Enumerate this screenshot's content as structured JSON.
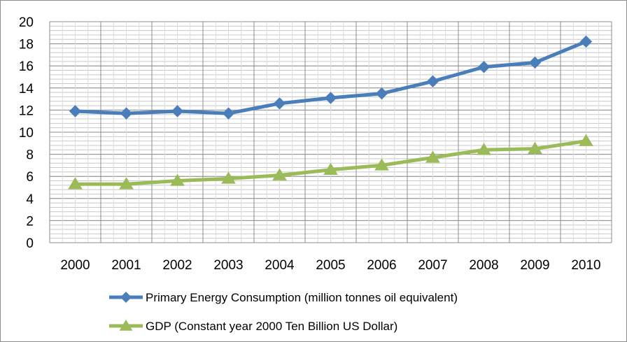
{
  "chart_data": {
    "type": "line",
    "title": "",
    "xlabel": "",
    "ylabel": "",
    "categories": [
      "2000",
      "2001",
      "2002",
      "2003",
      "2004",
      "2005",
      "2006",
      "2007",
      "2008",
      "2009",
      "2010"
    ],
    "ylim": [
      0,
      20
    ],
    "yticks": [
      "0",
      "2",
      "4",
      "6",
      "8",
      "10",
      "12",
      "14",
      "16",
      "18",
      "20"
    ],
    "grid": "on",
    "legend_position": "bottom",
    "series": [
      {
        "name": "Primary Energy Consumption (million tonnes oil equivalent)",
        "values": [
          11.9,
          11.7,
          11.9,
          11.7,
          12.6,
          13.1,
          13.5,
          14.6,
          15.9,
          16.3,
          18.2
        ],
        "color": "#4a7ebb",
        "marker": "diamond"
      },
      {
        "name": "GDP (Constant year 2000 Ten Billion US Dollar)",
        "values": [
          5.3,
          5.3,
          5.6,
          5.8,
          6.1,
          6.6,
          7.0,
          7.7,
          8.4,
          8.5,
          9.2
        ],
        "color": "#9bbb59",
        "marker": "triangle"
      }
    ]
  }
}
